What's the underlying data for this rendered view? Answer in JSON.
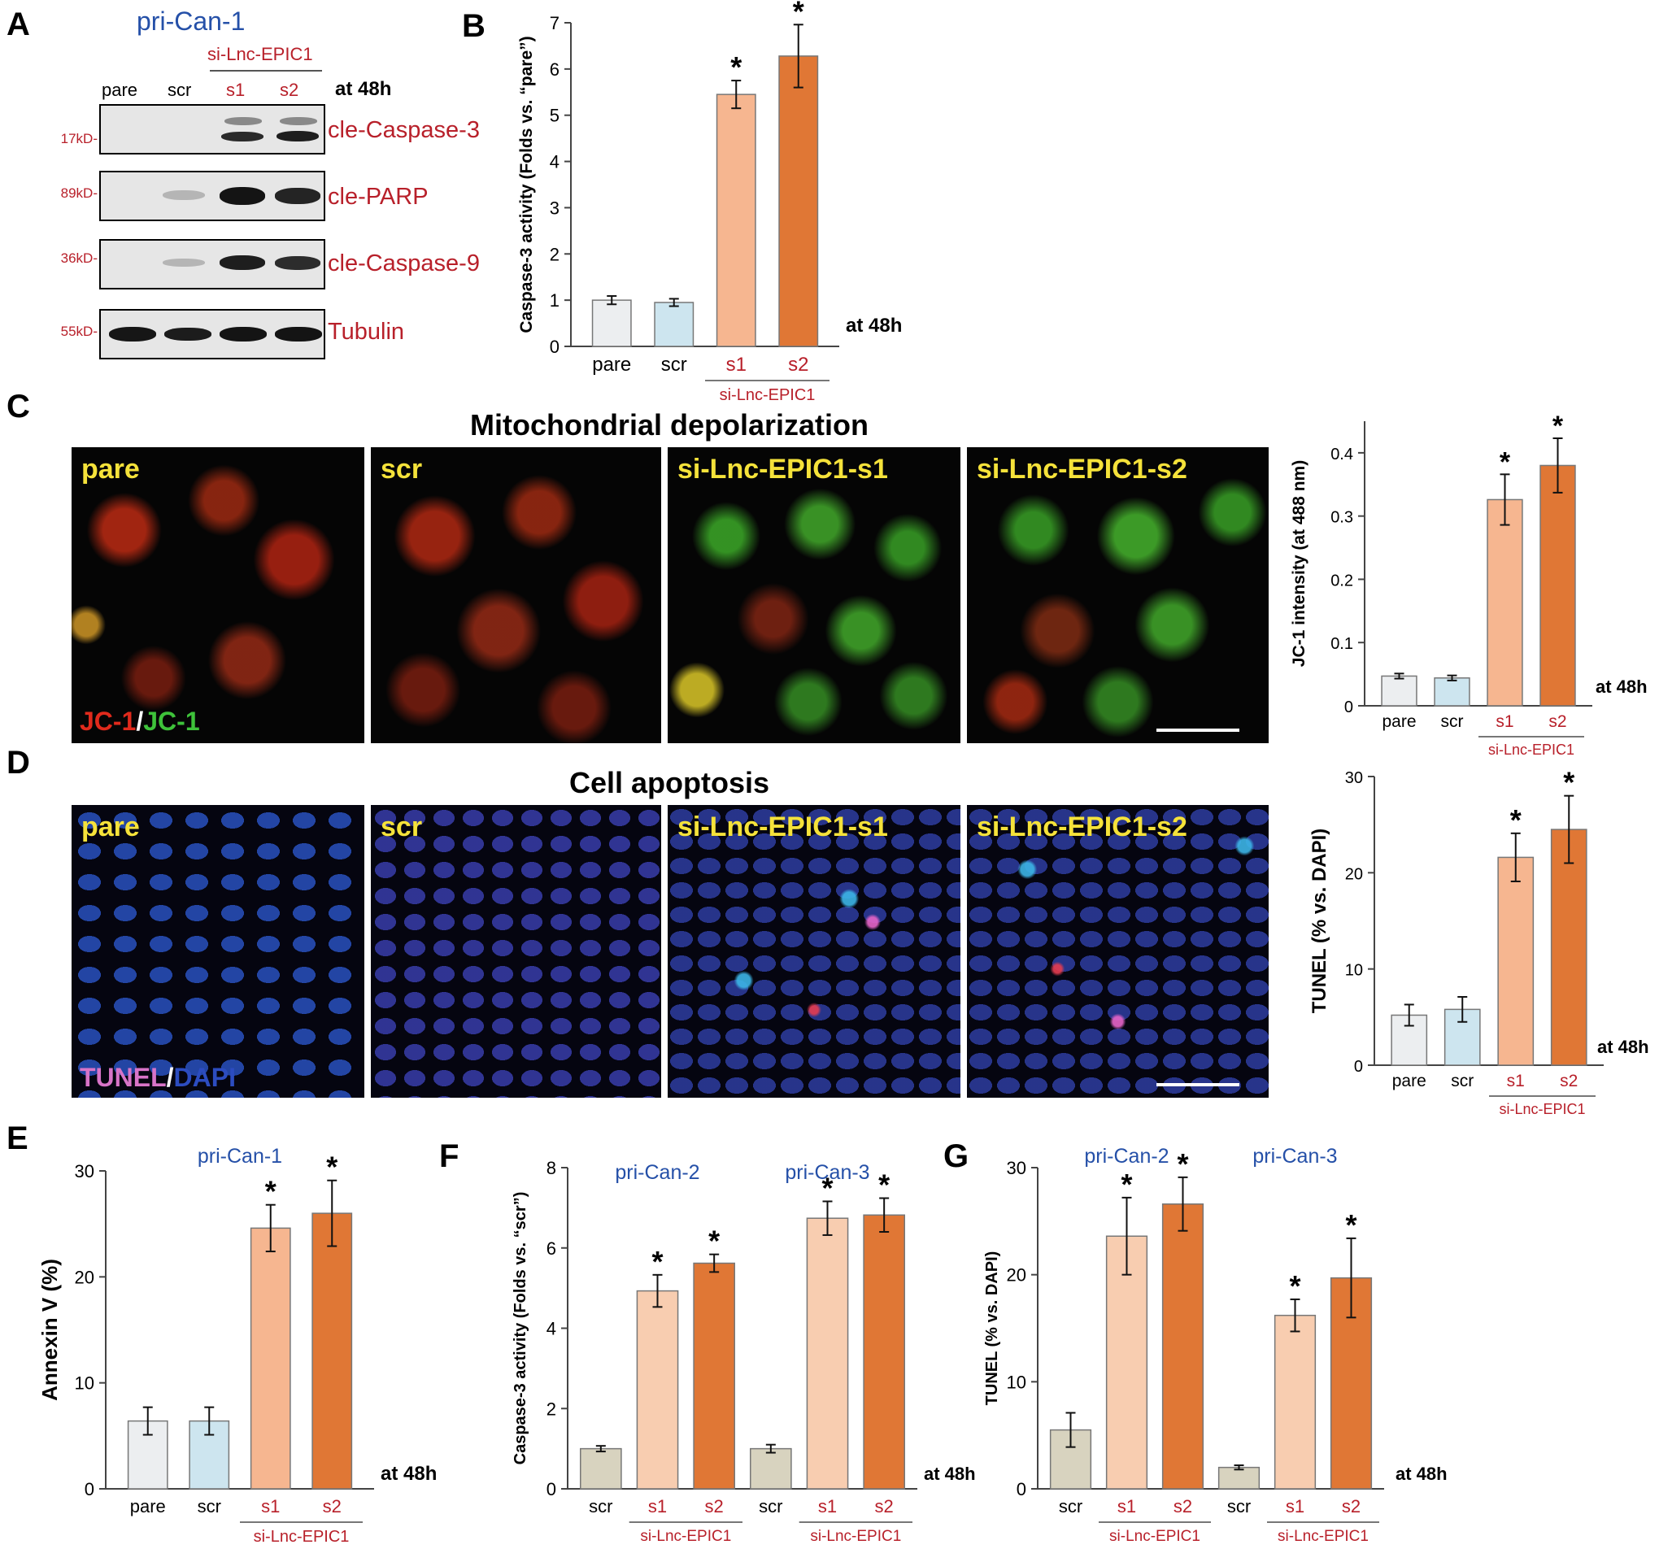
{
  "colors": {
    "pare": "#eceef0",
    "scr": "#cde5ef",
    "s1": "#f6b690",
    "s2": "#e07735",
    "scr_alt": "#d8d3bf",
    "s1_light": "#f8cdb0"
  },
  "panels": {
    "A": "A",
    "B": "B",
    "C": "C",
    "D": "D",
    "E": "E",
    "F": "F",
    "G": "G"
  },
  "panelA": {
    "cell_line": "pri-Can-1",
    "group_label": "si-Lnc-EPIC1",
    "lanes": [
      "pare",
      "scr",
      "s1",
      "s2"
    ],
    "timepoint": "at 48h",
    "blots": [
      {
        "marker": "17kD-",
        "label": "cle-Caspase-3"
      },
      {
        "marker": "89kD-",
        "label": "cle-PARP"
      },
      {
        "marker": "36kD-",
        "label": "cle-Caspase-9"
      },
      {
        "marker": "55kD-",
        "label": "Tubulin"
      }
    ]
  },
  "panelC": {
    "title": "Mitochondrial depolarization",
    "image_labels": [
      "pare",
      "scr",
      "si-Lnc-EPIC1-s1",
      "si-Lnc-EPIC1-s2"
    ],
    "stain_red": "JC-1",
    "stain_sep": "/",
    "stain_green": "JC-1"
  },
  "panelD": {
    "title": "Cell apoptosis",
    "image_labels": [
      "pare",
      "scr",
      "si-Lnc-EPIC1-s1",
      "si-Lnc-EPIC1-s2"
    ],
    "stain_pink": "TUNEL",
    "stain_sep": "/",
    "stain_blue": "DAPI"
  },
  "chart_data": [
    {
      "id": "B",
      "type": "bar",
      "categories": [
        "pare",
        "scr",
        "s1",
        "s2"
      ],
      "values": [
        1.0,
        0.95,
        5.45,
        6.28
      ],
      "errors": [
        0.09,
        0.08,
        0.3,
        0.68
      ],
      "significant": [
        false,
        false,
        true,
        true
      ],
      "ylabel": "Caspase-3 activity (Folds vs. “pare”)",
      "ylim": [
        0,
        7
      ],
      "yticks": [
        0,
        1,
        2,
        3,
        4,
        5,
        6,
        7
      ],
      "group_label": "si-Lnc-EPIC1",
      "annotation": "at 48h"
    },
    {
      "id": "C",
      "type": "bar",
      "categories": [
        "pare",
        "scr",
        "s1",
        "s2"
      ],
      "values": [
        0.047,
        0.044,
        0.326,
        0.38
      ],
      "errors": [
        0.004,
        0.004,
        0.04,
        0.043
      ],
      "significant": [
        false,
        false,
        true,
        true
      ],
      "ylabel": "JC-1 intensity (at 488 nm)",
      "ylim": [
        0,
        0.45
      ],
      "yticks": [
        0,
        0.1,
        0.2,
        0.3,
        0.4
      ],
      "ytick_labels": [
        "0",
        "0.1",
        "0.2",
        "0.3",
        "0.4"
      ],
      "group_label": "si-Lnc-EPIC1",
      "annotation": "at 48h"
    },
    {
      "id": "D",
      "type": "bar",
      "categories": [
        "pare",
        "scr",
        "s1",
        "s2"
      ],
      "values": [
        5.2,
        5.8,
        21.6,
        24.5
      ],
      "errors": [
        1.1,
        1.3,
        2.5,
        3.5
      ],
      "significant": [
        false,
        false,
        true,
        true
      ],
      "ylabel": "TUNEL (% vs. DAPI)",
      "ylim": [
        0,
        30
      ],
      "yticks": [
        0,
        10,
        20,
        30
      ],
      "group_label": "si-Lnc-EPIC1",
      "annotation": "at 48h"
    },
    {
      "id": "E",
      "type": "bar",
      "title": "pri-Can-1",
      "categories": [
        "pare",
        "scr",
        "s1",
        "s2"
      ],
      "values": [
        6.4,
        6.4,
        24.6,
        26.0
      ],
      "errors": [
        1.3,
        1.3,
        2.2,
        3.1
      ],
      "significant": [
        false,
        false,
        true,
        true
      ],
      "ylabel": "Annexin V (%)",
      "ylim": [
        0,
        30
      ],
      "yticks": [
        0,
        10,
        20,
        30
      ],
      "group_label": "si-Lnc-EPIC1",
      "annotation": "at 48h"
    },
    {
      "id": "F",
      "type": "bar",
      "group_titles": [
        "pri-Can-2",
        "pri-Can-3"
      ],
      "categories": [
        "scr",
        "s1",
        "s2",
        "scr",
        "s1",
        "s2"
      ],
      "values": [
        1.0,
        4.93,
        5.62,
        1.0,
        6.74,
        6.82
      ],
      "errors": [
        0.07,
        0.4,
        0.22,
        0.1,
        0.42,
        0.42
      ],
      "significant": [
        false,
        true,
        true,
        false,
        true,
        true
      ],
      "ylabel": "Caspase-3 activity (Folds vs. “scr”)",
      "ylim": [
        0,
        8
      ],
      "yticks": [
        0,
        2,
        4,
        6,
        8
      ],
      "group_label": "si-Lnc-EPIC1",
      "annotation": "at 48h"
    },
    {
      "id": "G",
      "type": "bar",
      "group_titles": [
        "pri-Can-2",
        "pri-Can-3"
      ],
      "categories": [
        "scr",
        "s1",
        "s2",
        "scr",
        "s1",
        "s2"
      ],
      "values": [
        5.5,
        23.6,
        26.6,
        2.0,
        16.2,
        19.7
      ],
      "errors": [
        1.6,
        3.6,
        2.5,
        0.2,
        1.5,
        3.7
      ],
      "significant": [
        false,
        true,
        true,
        false,
        true,
        true
      ],
      "ylabel": "TUNEL (% vs. DAPI)",
      "ylim": [
        0,
        30
      ],
      "yticks": [
        0,
        10,
        20,
        30
      ],
      "group_label": "si-Lnc-EPIC1",
      "annotation": "at 48h"
    }
  ],
  "significance_mark": "*"
}
